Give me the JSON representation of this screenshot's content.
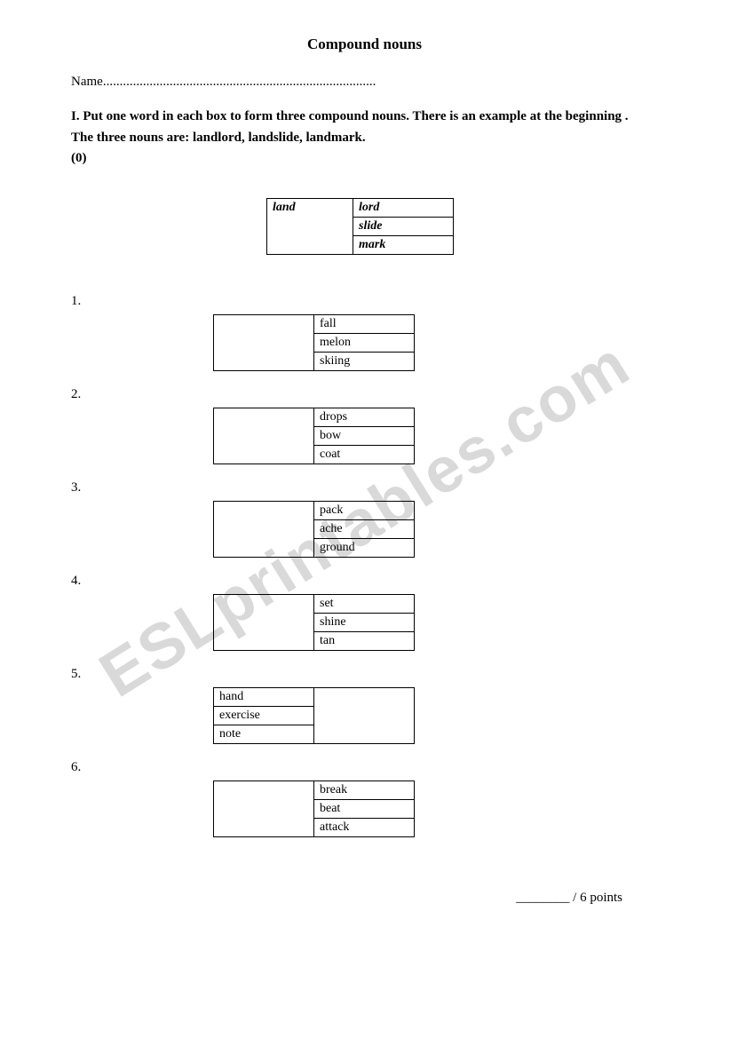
{
  "title": "Compound nouns",
  "name_label": "Name",
  "name_dots": "..................................................................................",
  "instructions_line1": "I. Put one word in each box to form three compound nouns. There is an example at the beginning .",
  "instructions_line2": "The three nouns are: landlord, landslide, landmark.",
  "zero_label": "(0)",
  "example": {
    "left": "land",
    "rows": [
      "lord",
      "slide",
      "mark"
    ]
  },
  "items": [
    {
      "num": "1.",
      "left": "",
      "rows": [
        "fall",
        "melon",
        "skiing"
      ],
      "blank_side": "left"
    },
    {
      "num": "2.",
      "left": "",
      "rows": [
        "drops",
        "bow",
        "coat"
      ],
      "blank_side": "left"
    },
    {
      "num": "3.",
      "left": "",
      "rows": [
        "pack",
        "ache",
        "ground"
      ],
      "blank_side": "left"
    },
    {
      "num": "4.",
      "left": "",
      "rows": [
        "set",
        "shine",
        "tan"
      ],
      "blank_side": "left"
    },
    {
      "num": "5.",
      "left": "",
      "rows": [
        "hand",
        "exercise",
        "note"
      ],
      "blank_side": "right"
    },
    {
      "num": "6.",
      "left": "",
      "rows": [
        "break",
        "beat",
        "attack"
      ],
      "blank_side": "left"
    }
  ],
  "score_prefix": "________",
  "score_suffix": " / 6 points",
  "watermark": "ESLprintables.com"
}
